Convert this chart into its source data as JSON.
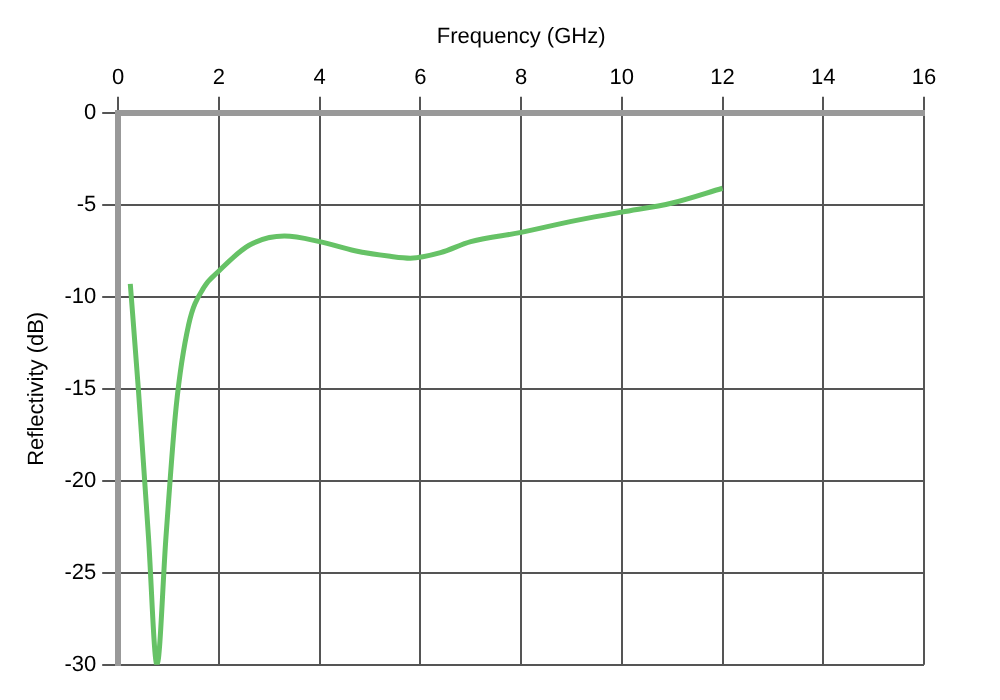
{
  "chart_data": {
    "type": "line",
    "xlabel": "Frequency (GHz)",
    "ylabel": "Reflectivity (dB)",
    "xlim": [
      0,
      16
    ],
    "xticks": [
      0,
      2,
      4,
      6,
      8,
      10,
      12,
      14,
      16
    ],
    "ylim": [
      -30,
      0
    ],
    "yticks": [
      -30,
      -25,
      -20,
      -15,
      -10,
      -5,
      0
    ],
    "grid": true,
    "marker": "none",
    "line_style": "solid",
    "series": [
      {
        "color": "#66c266",
        "x": [
          0.24,
          0.4,
          0.6,
          0.77,
          0.95,
          1.15,
          1.4,
          1.7,
          2.0,
          2.6,
          3.3,
          4.0,
          4.7,
          5.4,
          5.8,
          6.4,
          7.0,
          8.0,
          9.0,
          10.0,
          11.0,
          12.0
        ],
        "values": [
          -9.3,
          -15,
          -23,
          -30,
          -23,
          -16,
          -11.5,
          -9.5,
          -8.6,
          -7.2,
          -6.7,
          -7.0,
          -7.5,
          -7.8,
          -7.9,
          -7.6,
          -7.0,
          -6.5,
          -5.9,
          -5.4,
          -4.9,
          -4.1
        ]
      }
    ]
  }
}
